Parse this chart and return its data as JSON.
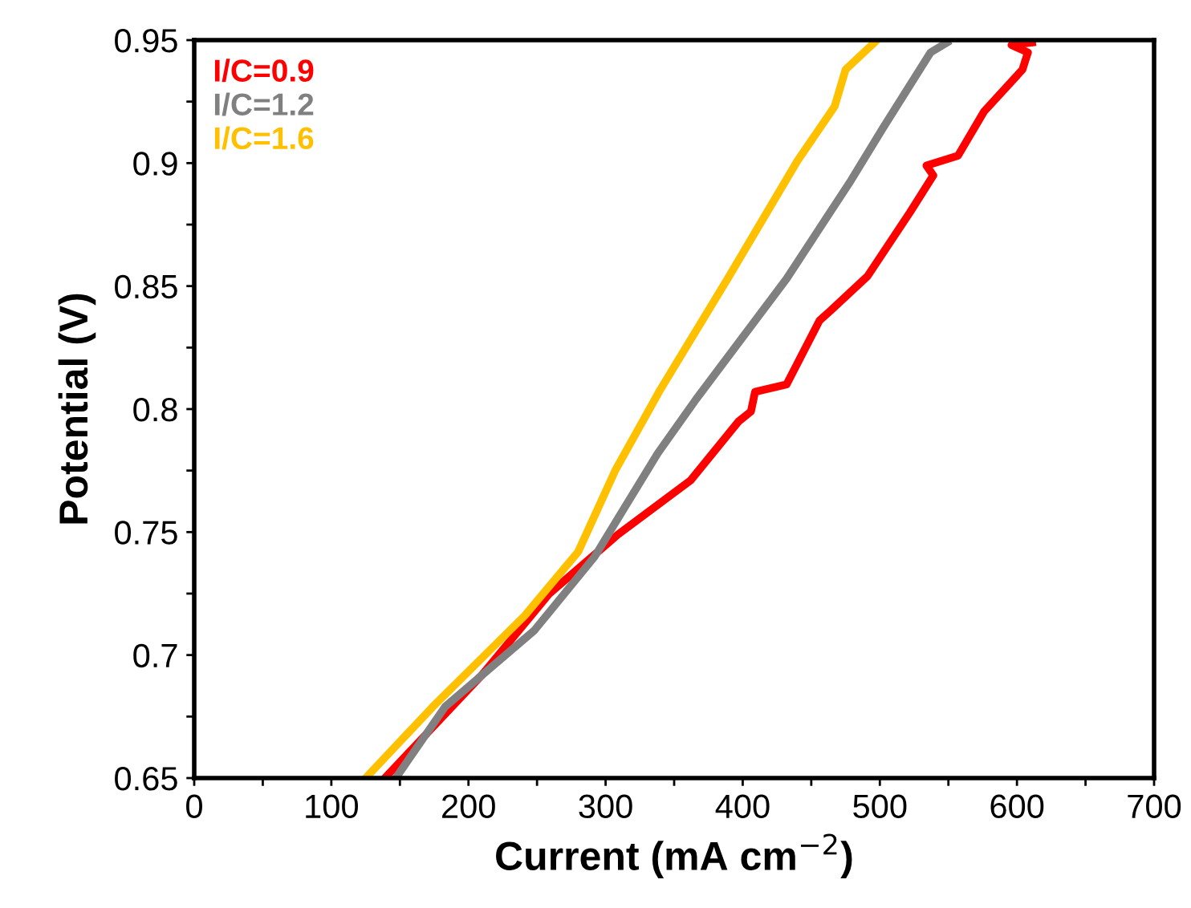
{
  "chart_data": {
    "type": "line",
    "xlabel": "Current (mA cm$^{−2}$)",
    "ylabel": "Potential (V)",
    "xlim": [
      0,
      700
    ],
    "ylim": [
      0.65,
      0.95
    ],
    "xticks": [
      0,
      {
        "value": 50,
        "label": null
      },
      100,
      {
        "value": 150,
        "label": null
      },
      200,
      {
        "value": 250,
        "label": null
      },
      300,
      {
        "value": 350,
        "label": null
      },
      400,
      {
        "value": 450,
        "label": null
      },
      500,
      {
        "value": 550,
        "label": null
      },
      600,
      {
        "value": 650,
        "label": null
      },
      700
    ],
    "yticks": [
      0.65,
      {
        "value": 0.675,
        "label": null
      },
      0.7,
      {
        "value": 0.725,
        "label": null
      },
      0.75,
      {
        "value": 0.775,
        "label": null
      },
      0.8,
      {
        "value": 0.825,
        "label": null
      },
      0.85,
      {
        "value": 0.875,
        "label": null
      },
      0.9,
      {
        "value": 0.925,
        "label": null
      },
      0.95
    ],
    "grid": false,
    "legend": "top left",
    "marker": "none",
    "line_style": "solid",
    "series": [
      {
        "name": "I/C=0.9",
        "color": "#ff0000",
        "x": [
          139,
          210,
          259,
          309,
          362,
          397,
          406,
          409,
          432,
          456,
          464,
          491,
          522,
          539,
          534,
          557,
          576,
          604,
          608,
          596,
          611
        ],
        "values": [
          0.65,
          0.692,
          0.725,
          0.749,
          0.771,
          0.795,
          0.799,
          0.807,
          0.81,
          0.836,
          0.84,
          0.854,
          0.88,
          0.895,
          0.899,
          0.903,
          0.921,
          0.938,
          0.945,
          0.948,
          0.949
        ]
      },
      {
        "name": "I/C=1.2",
        "color": "#808080",
        "x": [
          147,
          183,
          248,
          292,
          338,
          366,
          432,
          479,
          502,
          537,
          549
        ],
        "values": [
          0.65,
          0.679,
          0.71,
          0.74,
          0.782,
          0.804,
          0.853,
          0.893,
          0.914,
          0.945,
          0.949
        ]
      },
      {
        "name": "I/C=1.6",
        "color": "#ffc000",
        "x": [
          125,
          174,
          241,
          280,
          307,
          340,
          389,
          440,
          467,
          475,
          496
        ],
        "values": [
          0.65,
          0.679,
          0.716,
          0.742,
          0.775,
          0.808,
          0.853,
          0.901,
          0.923,
          0.938,
          0.949
        ]
      }
    ]
  }
}
